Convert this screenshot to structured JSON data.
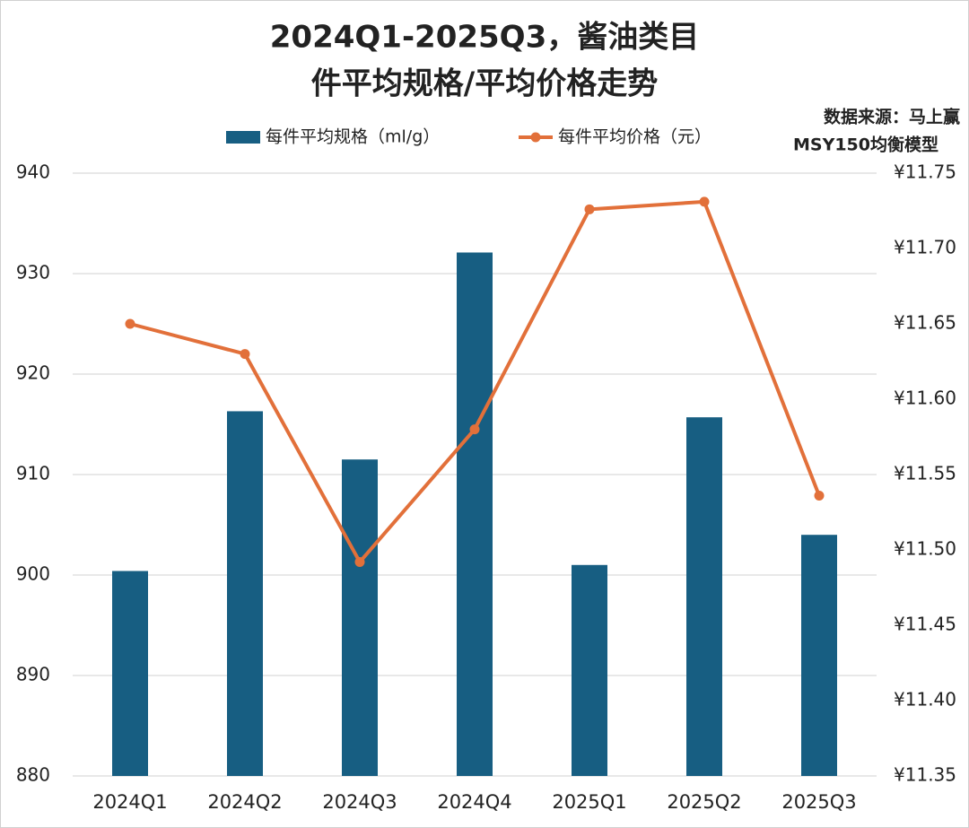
{
  "chart_data": {
    "type": "bar_line",
    "title": [
      "2024Q1-2025Q3，酱油类目",
      "件平均规格/平均价格走势"
    ],
    "annotation": [
      "数据来源：马上赢",
      "MSY150均衡模型"
    ],
    "categories": [
      "2024Q1",
      "2024Q2",
      "2024Q3",
      "2024Q4",
      "2025Q1",
      "2025Q2",
      "2025Q3"
    ],
    "series": [
      {
        "name": "每件平均规格（ml/g）",
        "color": "#175e82",
        "kind": "bar",
        "axis": "y",
        "values": [
          900.4,
          916.3,
          911.5,
          932.1,
          901.0,
          915.7,
          904.0
        ]
      },
      {
        "name": "每件平均价格（元）",
        "color": "#e2703a",
        "kind": "line",
        "axis": "y2",
        "values": [
          11.65,
          11.63,
          11.492,
          11.58,
          11.726,
          11.731,
          11.536
        ]
      }
    ],
    "ylim": [
      880,
      940
    ],
    "yticks": [
      880,
      890,
      900,
      910,
      920,
      930,
      940
    ],
    "y2lim": [
      11.35,
      11.75
    ],
    "y2ticks": [
      {
        "value": 11.35,
        "label": "¥11.35"
      },
      {
        "value": 11.4,
        "label": "¥11.40"
      },
      {
        "value": 11.45,
        "label": "¥11.45"
      },
      {
        "value": 11.5,
        "label": "¥11.50"
      },
      {
        "value": 11.55,
        "label": "¥11.55"
      },
      {
        "value": 11.6,
        "label": "¥11.60"
      },
      {
        "value": 11.65,
        "label": "¥11.65"
      },
      {
        "value": 11.7,
        "label": "¥11.70"
      },
      {
        "value": 11.75,
        "label": "¥11.75"
      }
    ],
    "grid": true
  }
}
